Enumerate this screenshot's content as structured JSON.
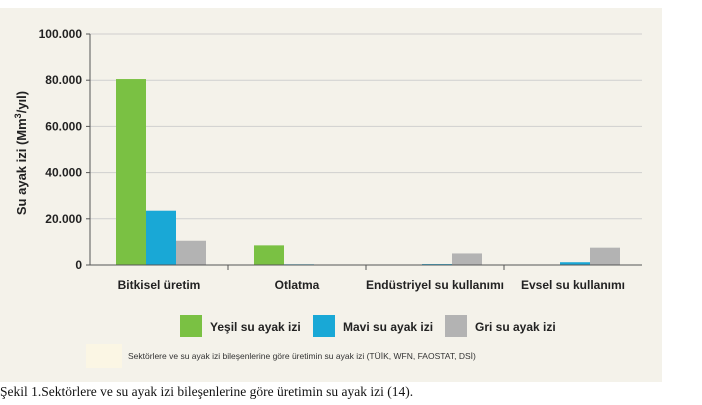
{
  "chart_data": {
    "type": "bar",
    "ylabel_prefix": "Su ayak izi (Mm",
    "ylabel_sup": "3",
    "ylabel_suffix": "/yıl)",
    "ylim": [
      0,
      100000
    ],
    "yticks": [
      0,
      20000,
      40000,
      60000,
      80000,
      100000
    ],
    "ytick_labels": [
      "0",
      "20.000",
      "40.000",
      "60.000",
      "80.000",
      "100.000"
    ],
    "grid": true,
    "legend_position": "bottom",
    "categories": [
      "Bitkisel üretim",
      "Otlatma",
      "Endüstriyel su kullanımı",
      "Evsel su kullanımı"
    ],
    "series": [
      {
        "name": "Yeşil su ayak izi",
        "color": "#7ac143",
        "values": [
          80500,
          8500,
          0,
          0
        ]
      },
      {
        "name": "Mavi su ayak izi",
        "color": "#19a8d6",
        "values": [
          23500,
          300,
          400,
          1200
        ]
      },
      {
        "name": "Gri su ayak izi",
        "color": "#b3b3b3",
        "values": [
          10500,
          0,
          5000,
          7500
        ]
      }
    ]
  },
  "source_note": "Sektörlere ve su ayak izi bileşenlerine göre üretimin su ayak izi (TÜİK, WFN, FAOSTAT, DSİ)",
  "caption": "Şekil 1.Sektörlere ve su ayak izi bileşenlerine göre üretimin su ayak izi (14)."
}
